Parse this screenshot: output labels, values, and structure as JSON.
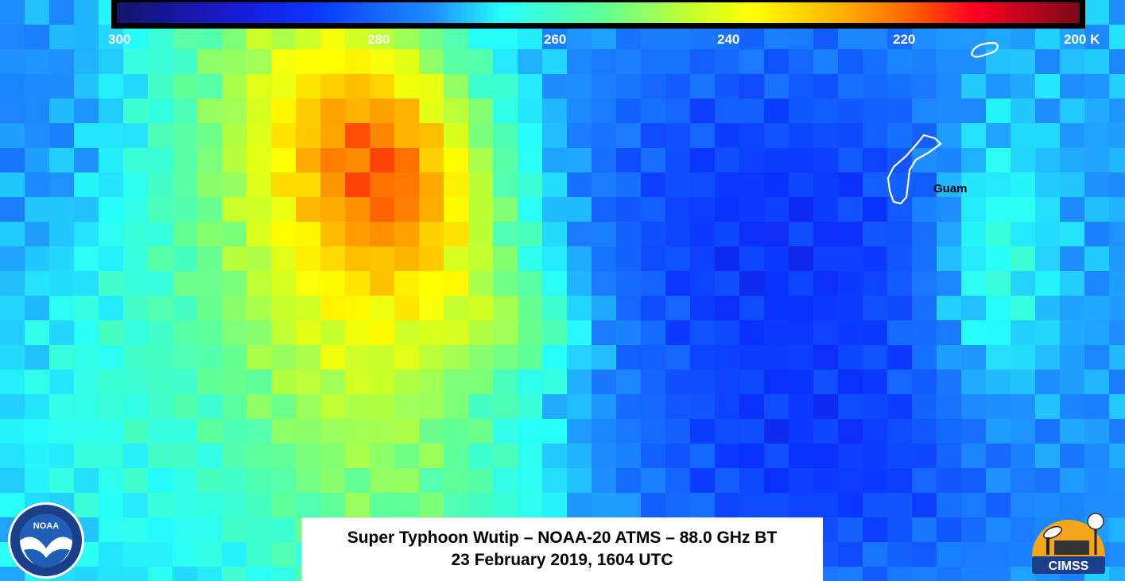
{
  "colorbar": {
    "ticks": [
      "300",
      "280",
      "260",
      "240",
      "220",
      "200 K"
    ],
    "colors": [
      "#14146e",
      "#1a1ad0",
      "#0a32ff",
      "#1e90ff",
      "#26fdfb",
      "#5dff9a",
      "#c9ff2a",
      "#ffff00",
      "#ffaa00",
      "#ff5a00",
      "#ff0022",
      "#7a0a18"
    ]
  },
  "map": {
    "place_label": "Guam",
    "outline_color": "#ffffff",
    "background_color": "#2a9cf0"
  },
  "caption": {
    "line1": "Super Typhoon Wutip – NOAA-20 ATMS – 88.0 GHz BT",
    "line2": "23 February 2019, 1604 UTC"
  },
  "logos": {
    "noaa_icon": "noaa-logo-icon",
    "noaa_text": "NOAA",
    "cimss_icon": "cimss-logo-icon",
    "cimss_text": "CIMSS"
  }
}
